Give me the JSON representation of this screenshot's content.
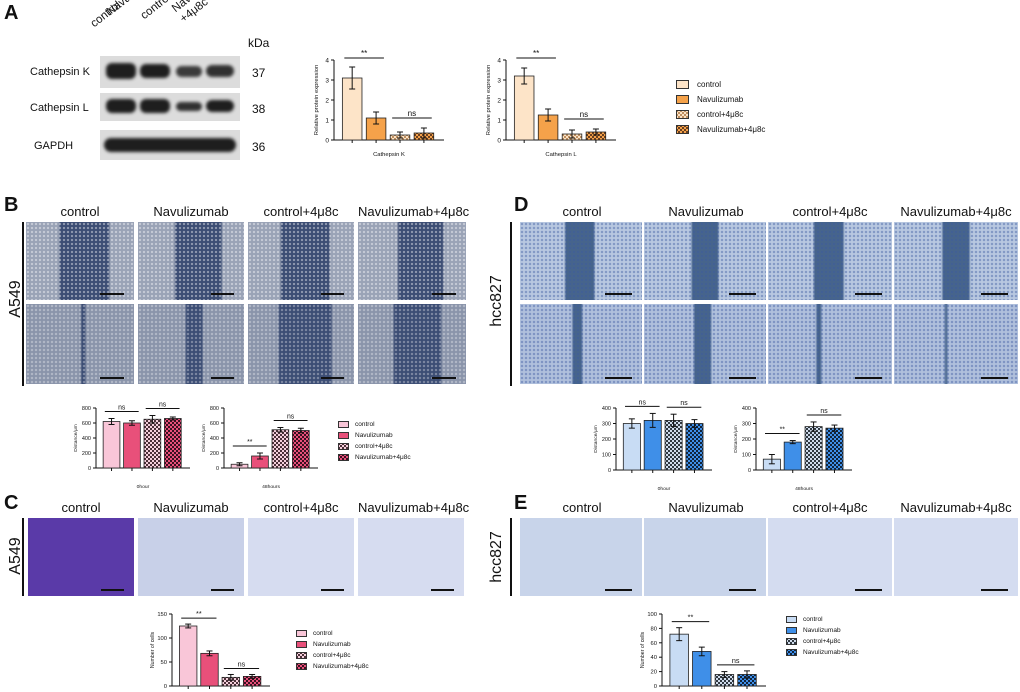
{
  "panels": {
    "A": "A",
    "B": "B",
    "C": "C",
    "D": "D",
    "E": "E"
  },
  "panelA": {
    "columns": [
      "control",
      "Navulizumab",
      "control+4μ8c",
      "Navulizumab\n+4μ8c"
    ],
    "unit_header": "kDa",
    "rows": [
      {
        "label": "Cathepsin K",
        "kda": "37"
      },
      {
        "label": "Cathepsin L",
        "kda": "38"
      },
      {
        "label": "GAPDH",
        "kda": "36"
      }
    ],
    "legend": [
      "control",
      "Navulizumab",
      "control+4μ8c",
      "Navulizumab+4μ8c"
    ]
  },
  "panelB": {
    "columns": [
      "control",
      "Navulizumab",
      "control+4μ8c",
      "Navulizumab+4μ8c"
    ],
    "row_label": "A549",
    "legend": [
      "control",
      "Navulizumab",
      "control+4μ8c",
      "Navulizumab+4μ8c"
    ]
  },
  "panelC": {
    "columns": [
      "control",
      "Navulizumab",
      "control+4μ8c",
      "Navulizumab+4μ8c"
    ],
    "row_label": "A549",
    "legend": [
      "control",
      "Navulizumab",
      "control+4μ8c",
      "Navulizumab+4μ8c"
    ]
  },
  "panelD": {
    "columns": [
      "control",
      "Navulizumab",
      "control+4μ8c",
      "Navulizumab+4μ8c"
    ],
    "row_label": "hcc827",
    "legend": [
      "control",
      "Navulizumab",
      "control+4μ8c",
      "Navulizumab+4μ8c"
    ]
  },
  "panelE": {
    "columns": [
      "control",
      "Navulizumab",
      "control+4μ8c",
      "Navulizumab+4μ8c"
    ],
    "row_label": "hcc827",
    "legend": [
      "control",
      "Navulizumab",
      "control+4μ8c",
      "Navulizumab+4μ8c"
    ]
  },
  "colors": {
    "A": [
      "#fde4c8",
      "#f5a24a",
      "#f0d0a8",
      "#e8a060"
    ],
    "B": [
      "#f9c6d8",
      "#e8507a",
      "#c8a0a8",
      "#a03050"
    ],
    "D": [
      "#c8dcf4",
      "#3f8fe8",
      "#b0b8c8",
      "#2a5a8c"
    ]
  },
  "chart_data": [
    {
      "id": "A1",
      "type": "bar",
      "panel": "A",
      "categories": [
        "control",
        "Navulizumab",
        "control+4μ8c",
        "Navulizumab+4μ8c"
      ],
      "values": [
        3.1,
        1.1,
        0.25,
        0.35
      ],
      "errors": [
        0.55,
        0.3,
        0.15,
        0.25
      ],
      "ylim": [
        0,
        4
      ],
      "yticks": [
        "0",
        "1",
        "2",
        "3",
        "4"
      ],
      "ylabel": "Relative protein expression",
      "xlabel": "Cathepsin K",
      "annotations": [
        {
          "text": "**",
          "between": [
            0,
            1
          ]
        },
        {
          "text": "ns",
          "between": [
            2,
            3
          ]
        }
      ],
      "legend_series": []
    },
    {
      "id": "A2",
      "type": "bar",
      "panel": "A",
      "categories": [
        "control",
        "Navulizumab",
        "control+4μ8c",
        "Navulizumab+4μ8c"
      ],
      "values": [
        3.2,
        1.25,
        0.3,
        0.4
      ],
      "errors": [
        0.4,
        0.3,
        0.2,
        0.15
      ],
      "ylim": [
        0,
        4
      ],
      "yticks": [
        "0",
        "1",
        "2",
        "3",
        "4"
      ],
      "ylabel": "Relative protein expression",
      "xlabel": "Cathepsin L",
      "annotations": [
        {
          "text": "**",
          "between": [
            0,
            1
          ]
        },
        {
          "text": "ns",
          "between": [
            2,
            3
          ]
        }
      ],
      "legend_series": []
    },
    {
      "id": "B1",
      "type": "bar",
      "panel": "B",
      "categories": [
        "control",
        "Navulizumab",
        "control+4μ8c",
        "Navulizumab+4μ8c"
      ],
      "values": [
        620,
        600,
        650,
        660
      ],
      "errors": [
        40,
        30,
        50,
        20
      ],
      "ylim": [
        0,
        800
      ],
      "yticks": [
        "0",
        "200",
        "400",
        "600",
        "800"
      ],
      "ylabel": "Distance/μm",
      "xlabel": "0hour",
      "annotations": [
        {
          "text": "ns",
          "between": [
            0,
            1
          ]
        },
        {
          "text": "ns",
          "between": [
            2,
            3
          ]
        }
      ],
      "legend_series": []
    },
    {
      "id": "B2",
      "type": "bar",
      "panel": "B",
      "categories": [
        "control",
        "Navulizumab",
        "control+4μ8c",
        "Navulizumab+4μ8c"
      ],
      "values": [
        50,
        160,
        510,
        500
      ],
      "errors": [
        20,
        40,
        30,
        30
      ],
      "ylim": [
        0,
        800
      ],
      "yticks": [
        "0",
        "200",
        "400",
        "600",
        "800"
      ],
      "ylabel": "Distance/μm",
      "xlabel": "48hours",
      "annotations": [
        {
          "text": "**",
          "between": [
            0,
            1
          ]
        },
        {
          "text": "ns",
          "between": [
            2,
            3
          ]
        }
      ],
      "legend_series": []
    },
    {
      "id": "C1",
      "type": "bar",
      "panel": "C",
      "categories": [
        "control",
        "Navulizumab",
        "control+4μ8c",
        "Navulizumab+4μ8c"
      ],
      "values": [
        125,
        68,
        18,
        20
      ],
      "errors": [
        4,
        5,
        6,
        4
      ],
      "ylim": [
        0,
        150
      ],
      "yticks": [
        "0",
        "50",
        "100",
        "150"
      ],
      "ylabel": "Number of cells",
      "xlabel": "",
      "annotations": [
        {
          "text": "**",
          "between": [
            0,
            1
          ]
        },
        {
          "text": "ns",
          "between": [
            2,
            3
          ]
        }
      ],
      "legend_series": []
    },
    {
      "id": "D1",
      "type": "bar",
      "panel": "D",
      "categories": [
        "control",
        "Navulizumab",
        "control+4μ8c",
        "Navulizumab+4μ8c"
      ],
      "values": [
        300,
        320,
        320,
        300
      ],
      "errors": [
        30,
        45,
        40,
        25
      ],
      "ylim": [
        0,
        400
      ],
      "yticks": [
        "0",
        "100",
        "200",
        "300",
        "400"
      ],
      "ylabel": "Distance/μm",
      "xlabel": "0hour",
      "annotations": [
        {
          "text": "ns",
          "between": [
            0,
            1
          ]
        },
        {
          "text": "ns",
          "between": [
            2,
            3
          ]
        }
      ],
      "legend_series": []
    },
    {
      "id": "D2",
      "type": "bar",
      "panel": "D",
      "categories": [
        "control",
        "Navulizumab",
        "control+4μ8c",
        "Navulizumab+4μ8c"
      ],
      "values": [
        70,
        180,
        280,
        270
      ],
      "errors": [
        30,
        10,
        30,
        20
      ],
      "ylim": [
        0,
        400
      ],
      "yticks": [
        "0",
        "100",
        "200",
        "300",
        "400"
      ],
      "ylabel": "Distance/μm",
      "xlabel": "48hours",
      "annotations": [
        {
          "text": "**",
          "between": [
            0,
            1
          ]
        },
        {
          "text": "ns",
          "between": [
            2,
            3
          ]
        }
      ],
      "legend_series": []
    },
    {
      "id": "E1",
      "type": "bar",
      "panel": "E",
      "categories": [
        "control",
        "Navulizumab",
        "control+4μ8c",
        "Navulizumab+4μ8c"
      ],
      "values": [
        72,
        48,
        16,
        16
      ],
      "errors": [
        9,
        6,
        4,
        5
      ],
      "ylim": [
        0,
        100
      ],
      "yticks": [
        "0",
        "20",
        "40",
        "60",
        "80",
        "100"
      ],
      "ylabel": "Number of cells",
      "xlabel": "",
      "annotations": [
        {
          "text": "**",
          "between": [
            0,
            1
          ]
        },
        {
          "text": "ns",
          "between": [
            2,
            3
          ]
        }
      ],
      "legend_series": []
    }
  ]
}
